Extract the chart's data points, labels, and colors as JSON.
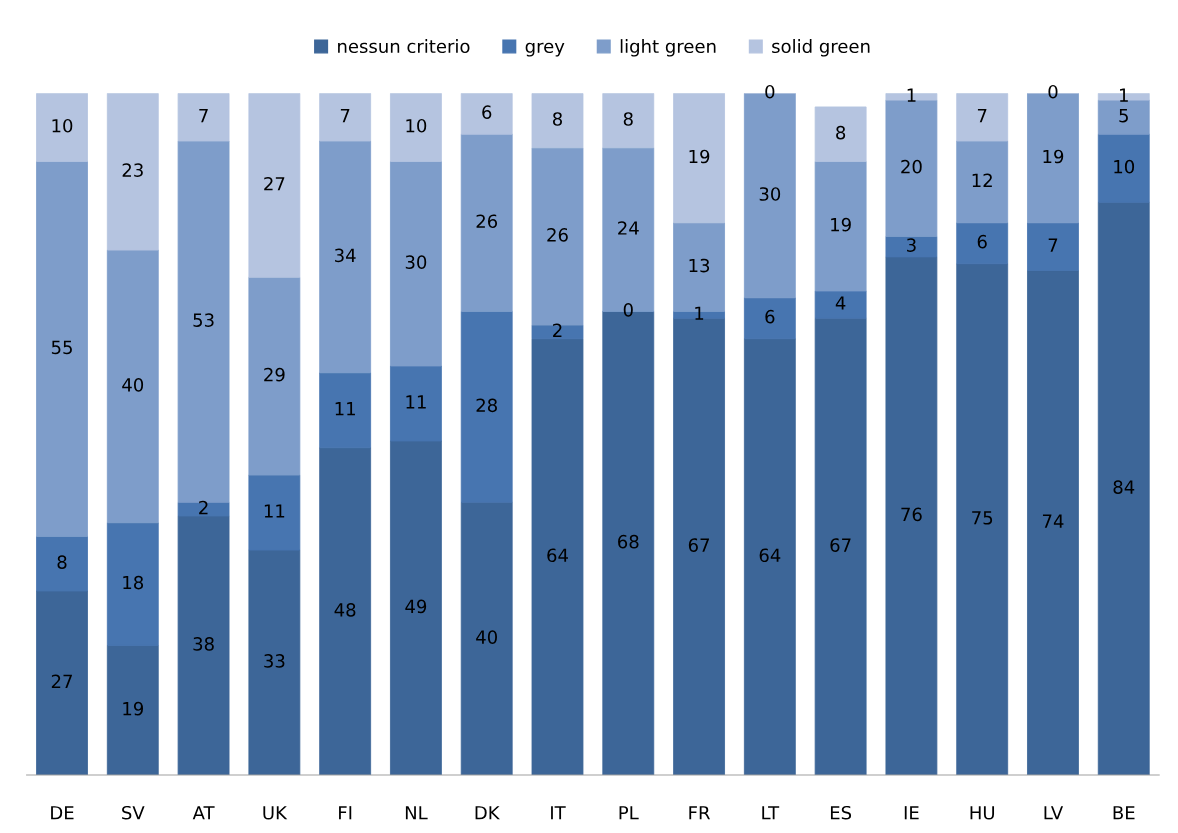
{
  "chart_data": {
    "type": "bar",
    "stacked": true,
    "legend": "top",
    "grid": false,
    "categories": [
      "DE",
      "SV",
      "AT",
      "UK",
      "FI",
      "NL",
      "DK",
      "IT",
      "PL",
      "FR",
      "LT",
      "ES",
      "IE",
      "HU",
      "LV",
      "BE"
    ],
    "series": [
      {
        "name": "nessun criterio",
        "color": "#3d6698",
        "values": [
          27,
          19,
          38,
          33,
          48,
          49,
          40,
          64,
          68,
          67,
          64,
          67,
          76,
          75,
          74,
          84
        ],
        "value_labels": [
          "27",
          "19",
          "38",
          "33",
          "48",
          "49",
          "40",
          "64",
          "68",
          "67",
          "64",
          "67",
          "76",
          "75",
          "74",
          "84"
        ]
      },
      {
        "name": "grey",
        "color": "#4775b0",
        "values": [
          8,
          18,
          2,
          11,
          11,
          11,
          28,
          2,
          0,
          1,
          6,
          4,
          3,
          6,
          7,
          10
        ],
        "value_labels": [
          "8",
          "18",
          "2",
          "11",
          "11",
          "11",
          "28",
          "2",
          "0",
          "1",
          "6",
          "4",
          "3",
          "6",
          "7",
          "10"
        ]
      },
      {
        "name": "light green",
        "color": "#7e9dca",
        "values": [
          55,
          40,
          53,
          29,
          34,
          30,
          26,
          26,
          24,
          13,
          30,
          19,
          20,
          12,
          19,
          5
        ],
        "value_labels": [
          "55",
          "40",
          "53",
          "29",
          "34",
          "30",
          "26",
          "26",
          "24",
          "13",
          "30",
          "19",
          "20",
          "12",
          "19",
          "5"
        ]
      },
      {
        "name": "solid green",
        "color": "#b5c4e0",
        "values": [
          10,
          23,
          7,
          27,
          7,
          10,
          6,
          8,
          8,
          19,
          0,
          8,
          1,
          7,
          0,
          1
        ],
        "value_labels": [
          "10",
          "23",
          "7",
          "27",
          "7",
          "10",
          "6",
          "8",
          "8",
          "19",
          "0",
          "8",
          "1",
          "7",
          "0",
          "1"
        ]
      }
    ]
  }
}
